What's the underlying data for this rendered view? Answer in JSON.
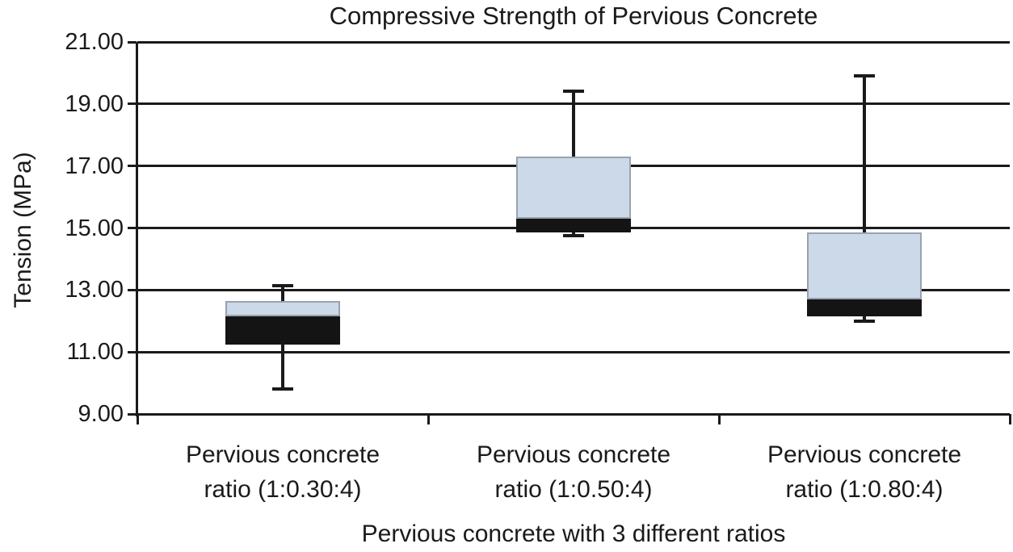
{
  "chart_data": {
    "type": "box",
    "title": "Compressive Strength of Pervious Concrete",
    "ylabel": "Tension (MPa)",
    "xlabel": "Pervious concrete with 3 different ratios",
    "ylim": [
      9,
      21
    ],
    "grid": "horizontal",
    "legend": "none",
    "yticks": [
      {
        "value": 21,
        "label": "21.00"
      },
      {
        "value": 19,
        "label": "19.00"
      },
      {
        "value": 17,
        "label": "17.00"
      },
      {
        "value": 15,
        "label": "15.00"
      },
      {
        "value": 13,
        "label": "13.00"
      },
      {
        "value": 11,
        "label": "11.00"
      },
      {
        "value": 9,
        "label": "9.00"
      }
    ],
    "series": [
      {
        "label": "Pervious concrete ratio (1:0.30:4)",
        "label_lines": [
          "Pervious concrete",
          "ratio (1:0.30:4)"
        ],
        "whisker_low": 9.8,
        "q1": 11.25,
        "median": 12.15,
        "q3": 12.65,
        "whisker_high": 13.15
      },
      {
        "label": "Pervious concrete ratio (1:0.50:4)",
        "label_lines": [
          "Pervious concrete",
          "ratio (1:0.50:4)"
        ],
        "whisker_low": 14.75,
        "q1": 14.85,
        "median": 15.3,
        "q3": 17.3,
        "whisker_high": 19.4
      },
      {
        "label": "Pervious concrete ratio (1:0.80:4)",
        "label_lines": [
          "Pervious concrete",
          "ratio (1:0.80:4)"
        ],
        "whisker_low": 12.0,
        "q1": 12.15,
        "median": 12.7,
        "q3": 14.85,
        "whisker_high": 19.9
      }
    ],
    "colors": {
      "box_upper_fill": "#ccd9e8",
      "box_upper_border": "#98a3af",
      "box_lower_fill": "#141414",
      "line": "#1a1a1a"
    }
  }
}
